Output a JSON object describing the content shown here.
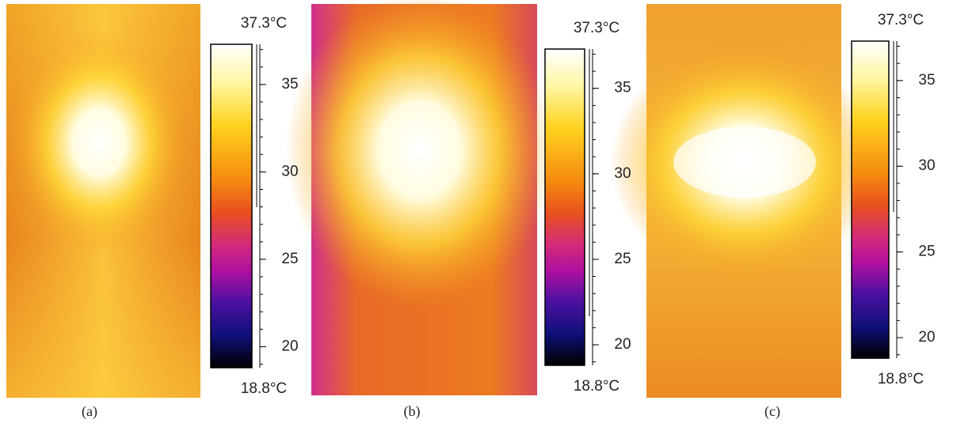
{
  "panels": [
    {
      "caption": "(a)",
      "colorbar": {
        "max": {
          "value": 37.3,
          "label": "37.3°C"
        },
        "min": {
          "value": 18.8,
          "label": "18.8°C"
        },
        "ticks": [
          20,
          25,
          30,
          35
        ]
      }
    },
    {
      "caption": "(b)",
      "colorbar": {
        "max": {
          "value": 37.3,
          "label": "37.3°C"
        },
        "min": {
          "value": 18.8,
          "label": "18.8°C"
        },
        "ticks": [
          20,
          25,
          30,
          35
        ]
      }
    },
    {
      "caption": "(c)",
      "colorbar": {
        "max": {
          "value": 37.3,
          "label": "37.3°C"
        },
        "min": {
          "value": 18.8,
          "label": "18.8°C"
        },
        "ticks": [
          20,
          25,
          30,
          35
        ]
      }
    }
  ]
}
